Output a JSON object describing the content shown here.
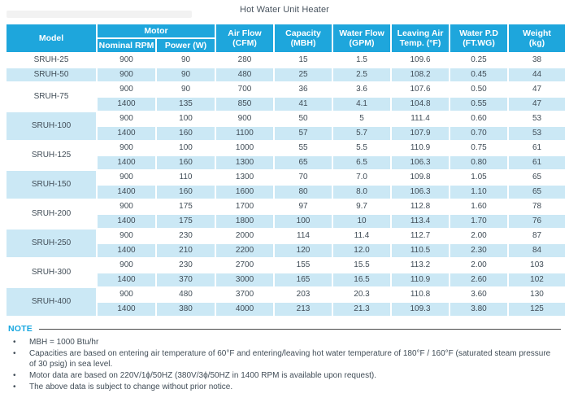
{
  "page": {
    "title": "Hot Water Unit Heater"
  },
  "colors": {
    "header_bg": "#1EA6DC",
    "row_alt_bg": "#CBE8F5",
    "grid": "#FFFFFF",
    "body_text": "#414D57",
    "title_text": "#4A5560",
    "note_label": "#17A7E0",
    "note_rule": "#4A4A4A"
  },
  "table": {
    "headers": {
      "model": "Model",
      "motor": "Motor",
      "nominal_rpm": "Nominal RPM",
      "power_w": "Power (W)",
      "air_flow": [
        "Air Flow",
        "(CFM)"
      ],
      "capacity": [
        "Capacity",
        "(MBH)"
      ],
      "water_flow": [
        "Water Flow",
        "(GPM)"
      ],
      "leaving_air": [
        "Leaving Air",
        "Temp. (°F)"
      ],
      "water_pd": [
        "Water P.D",
        "(FT.WG)"
      ],
      "weight": [
        "Weight",
        "(kg)"
      ]
    },
    "groups": [
      {
        "model": "SRUH-25",
        "rows": [
          [
            "900",
            "90",
            "280",
            "15",
            "1.5",
            "109.6",
            "0.25",
            "38"
          ]
        ]
      },
      {
        "model": "SRUH-50",
        "rows": [
          [
            "900",
            "90",
            "480",
            "25",
            "2.5",
            "108.2",
            "0.45",
            "44"
          ]
        ]
      },
      {
        "model": "SRUH-75",
        "rows": [
          [
            "900",
            "90",
            "700",
            "36",
            "3.6",
            "107.6",
            "0.50",
            "47"
          ],
          [
            "1400",
            "135",
            "850",
            "41",
            "4.1",
            "104.8",
            "0.55",
            "47"
          ]
        ]
      },
      {
        "model": "SRUH-100",
        "rows": [
          [
            "900",
            "100",
            "900",
            "50",
            "5",
            "111.4",
            "0.60",
            "53"
          ],
          [
            "1400",
            "160",
            "1100",
            "57",
            "5.7",
            "107.9",
            "0.70",
            "53"
          ]
        ]
      },
      {
        "model": "SRUH-125",
        "rows": [
          [
            "900",
            "100",
            "1000",
            "55",
            "5.5",
            "110.9",
            "0.75",
            "61"
          ],
          [
            "1400",
            "160",
            "1300",
            "65",
            "6.5",
            "106.3",
            "0.80",
            "61"
          ]
        ]
      },
      {
        "model": "SRUH-150",
        "rows": [
          [
            "900",
            "110",
            "1300",
            "70",
            "7.0",
            "109.8",
            "1.05",
            "65"
          ],
          [
            "1400",
            "160",
            "1600",
            "80",
            "8.0",
            "106.3",
            "1.10",
            "65"
          ]
        ]
      },
      {
        "model": "SRUH-200",
        "rows": [
          [
            "900",
            "175",
            "1700",
            "97",
            "9.7",
            "112.8",
            "1.60",
            "78"
          ],
          [
            "1400",
            "175",
            "1800",
            "100",
            "10",
            "113.4",
            "1.70",
            "76"
          ]
        ]
      },
      {
        "model": "SRUH-250",
        "rows": [
          [
            "900",
            "230",
            "2000",
            "114",
            "11.4",
            "112.7",
            "2.00",
            "87"
          ],
          [
            "1400",
            "210",
            "2200",
            "120",
            "12.0",
            "110.5",
            "2.30",
            "84"
          ]
        ]
      },
      {
        "model": "SRUH-300",
        "rows": [
          [
            "900",
            "230",
            "2700",
            "155",
            "15.5",
            "113.2",
            "2.00",
            "103"
          ],
          [
            "1400",
            "370",
            "3000",
            "165",
            "16.5",
            "110.9",
            "2.60",
            "102"
          ]
        ]
      },
      {
        "model": "SRUH-400",
        "rows": [
          [
            "900",
            "480",
            "3700",
            "203",
            "20.3",
            "110.8",
            "3.60",
            "130"
          ],
          [
            "1400",
            "380",
            "4000",
            "213",
            "21.3",
            "109.3",
            "3.80",
            "125"
          ]
        ]
      }
    ]
  },
  "note": {
    "label": "NOTE",
    "bullet": "•",
    "items": [
      "MBH = 1000 Btu/hr",
      "Capacities are based on entering air temperature of 60°F and entering/leaving hot water temperature of 180°F / 160°F (saturated steam pressure of 30 psig) in sea level.",
      "Motor data are based on 220V/1ϕ/50HZ (380V/3ϕ/50HZ in 1400 RPM is available upon request).",
      "The above data is subject to change without prior notice."
    ]
  }
}
